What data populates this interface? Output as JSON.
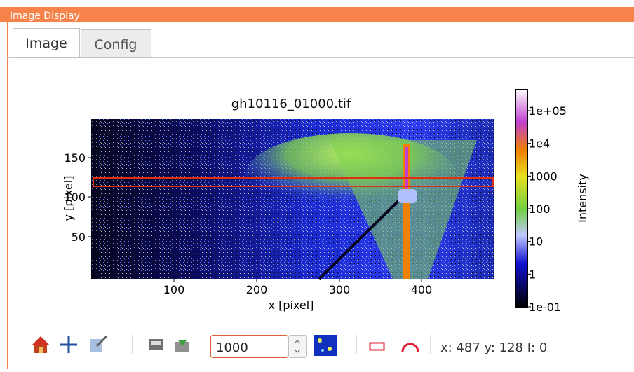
{
  "window": {
    "title": "Image Display"
  },
  "tabs": [
    "Image",
    "Config"
  ],
  "plot": {
    "title": "gh10116_01000.tif",
    "xlabel": "x [pixel]",
    "ylabel": "y [pixel]",
    "xticks": [
      "100",
      "200",
      "300",
      "400"
    ],
    "yticks": [
      "150",
      "100",
      "50"
    ],
    "colorbar": {
      "label": "Intensity",
      "ticks": [
        "1e+05",
        "1e4",
        "1000",
        "100",
        "10",
        "1",
        "1e-01"
      ]
    }
  },
  "toolbar": {
    "frame_input": "1000",
    "status": "x: 487 y: 128 I: 0"
  }
}
